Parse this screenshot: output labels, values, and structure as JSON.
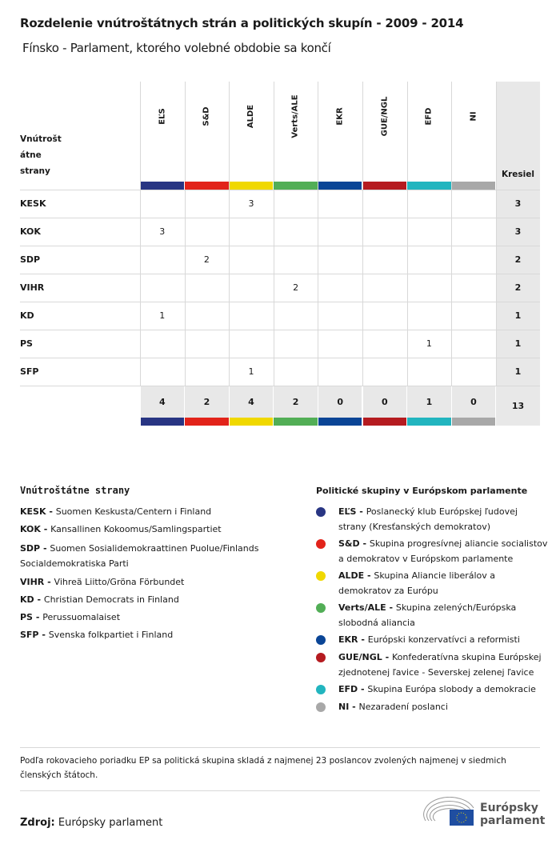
{
  "title": "Rozdelenie vnútroštátnych strán a politických skupín - 2009 - 2014",
  "subtitle": "Fínsko - Parlament, ktorého volebné obdobie sa končí",
  "chart_data": {
    "type": "table",
    "row_header": "Vnútroštátne strany",
    "row_header_lines": [
      "Vnútrošt",
      "átne",
      "strany"
    ],
    "total_header": "Kresiel",
    "groups": [
      {
        "name": "EĽS",
        "color": "#283583"
      },
      {
        "name": "S&D",
        "color": "#e2231a"
      },
      {
        "name": "ALDE",
        "color": "#f0d800"
      },
      {
        "name": "Verts/ALE",
        "color": "#52ae56"
      },
      {
        "name": "EKR",
        "color": "#0a4596"
      },
      {
        "name": "GUE/NGL",
        "color": "#b51b20"
      },
      {
        "name": "EFD",
        "color": "#22b5bf"
      },
      {
        "name": "NI",
        "color": "#a8a8a8"
      }
    ],
    "rows": [
      {
        "party": "KESK",
        "values": [
          null,
          null,
          "3",
          null,
          null,
          null,
          null,
          null
        ],
        "total": "3"
      },
      {
        "party": "KOK",
        "values": [
          "3",
          null,
          null,
          null,
          null,
          null,
          null,
          null
        ],
        "total": "3"
      },
      {
        "party": "SDP",
        "values": [
          null,
          "2",
          null,
          null,
          null,
          null,
          null,
          null
        ],
        "total": "2"
      },
      {
        "party": "VIHR",
        "values": [
          null,
          null,
          null,
          "2",
          null,
          null,
          null,
          null
        ],
        "total": "2"
      },
      {
        "party": "KD",
        "values": [
          "1",
          null,
          null,
          null,
          null,
          null,
          null,
          null
        ],
        "total": "1"
      },
      {
        "party": "PS",
        "values": [
          null,
          null,
          null,
          null,
          null,
          null,
          "1",
          null
        ],
        "total": "1"
      },
      {
        "party": "SFP",
        "values": [
          null,
          null,
          "1",
          null,
          null,
          null,
          null,
          null
        ],
        "total": "1"
      }
    ],
    "group_totals": [
      "4",
      "2",
      "4",
      "2",
      "0",
      "0",
      "1",
      "0"
    ],
    "grand_total": "13"
  },
  "legend_parties": {
    "heading": "Vnútroštátne strany",
    "items": [
      {
        "abbr": "KESK",
        "name": "Suomen Keskusta/Centern i Finland"
      },
      {
        "abbr": "KOK",
        "name": "Kansallinen Kokoomus/Samlingspartiet"
      },
      {
        "abbr": "SDP",
        "name": "Suomen Sosialidemokraattinen Puolue/Finlands Socialdemokratiska Parti"
      },
      {
        "abbr": "VIHR",
        "name": "Vihreä Liitto/Gröna Förbundet"
      },
      {
        "abbr": "KD",
        "name": "Christian Democrats in Finland"
      },
      {
        "abbr": "PS",
        "name": "Perussuomalaiset"
      },
      {
        "abbr": "SFP",
        "name": "Svenska folkpartiet i Finland"
      }
    ]
  },
  "legend_groups": {
    "heading": "Politické skupiny v Európskom parlamente",
    "items": [
      {
        "abbr": "EĽS",
        "name": "Poslanecký klub Európskej ľudovej strany (Kresťanských demokratov)"
      },
      {
        "abbr": "S&D",
        "name": "Skupina progresívnej aliancie socialistov a demokratov v Európskom parlamente"
      },
      {
        "abbr": "ALDE",
        "name": "Skupina Aliancie liberálov a demokratov za Európu"
      },
      {
        "abbr": "Verts/ALE",
        "name": "Skupina zelených/Európska slobodná aliancia"
      },
      {
        "abbr": "EKR",
        "name": "Európski konzervatívci a reformisti"
      },
      {
        "abbr": "GUE/NGL",
        "name": "Konfederatívna skupina Európskej zjednotenej ľavice - Severskej zelenej ľavice"
      },
      {
        "abbr": "EFD",
        "name": "Skupina Európa slobody a demokracie"
      },
      {
        "abbr": "NI",
        "name": "Nezaradení poslanci"
      }
    ]
  },
  "note": "Podľa rokovacieho poriadku EP sa politická skupina skladá z najmenej 23 poslancov zvolených najmenej v siedmich členských štátoch.",
  "source_label": "Zdroj:",
  "source": "Európsky parlament",
  "logo_text": [
    "Európsky",
    "parlament"
  ]
}
